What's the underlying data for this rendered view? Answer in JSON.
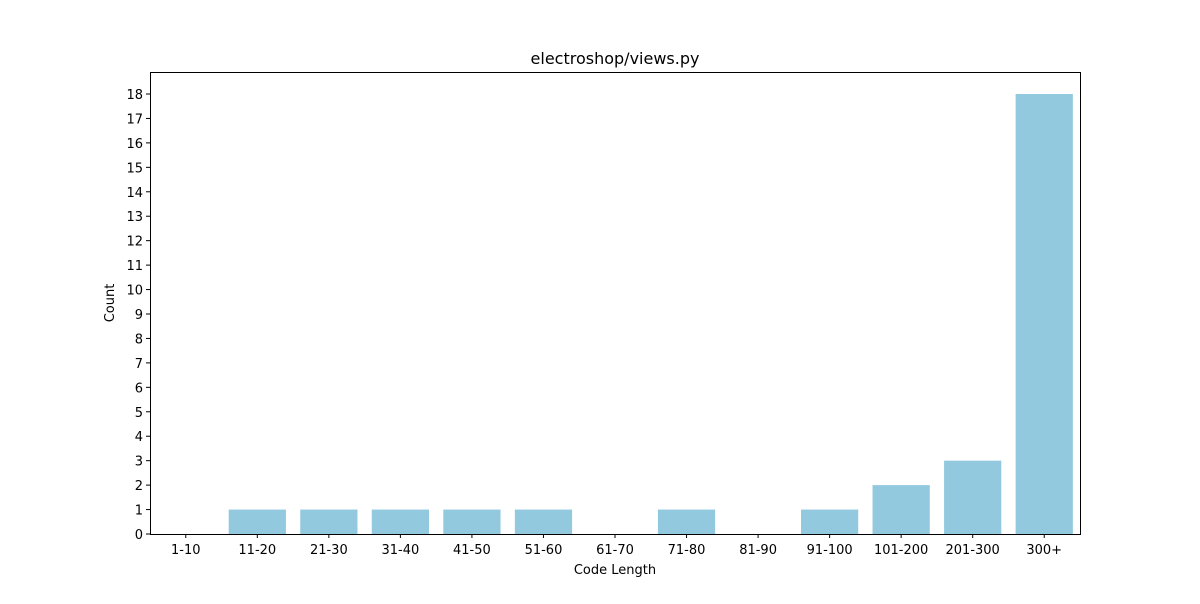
{
  "chart_data": {
    "type": "bar",
    "title": "electroshop/views.py",
    "xlabel": "Code Length",
    "ylabel": "Count",
    "categories": [
      "1-10",
      "11-20",
      "21-30",
      "31-40",
      "41-50",
      "51-60",
      "61-70",
      "71-80",
      "81-90",
      "91-100",
      "101-200",
      "201-300",
      "300+"
    ],
    "values": [
      0,
      1,
      1,
      1,
      1,
      1,
      0,
      1,
      0,
      1,
      2,
      3,
      18
    ],
    "ylim": [
      0,
      18.9
    ],
    "yticks": [
      0,
      1,
      2,
      3,
      4,
      5,
      6,
      7,
      8,
      9,
      10,
      11,
      12,
      13,
      14,
      15,
      16,
      17,
      18
    ],
    "grid": false,
    "bar_color": "#92c9de"
  }
}
